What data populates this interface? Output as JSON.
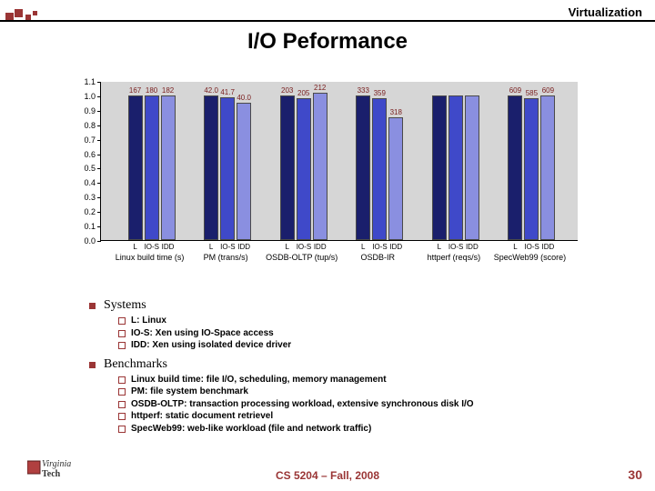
{
  "header": {
    "right": "Virtualization"
  },
  "title": "I/O Peformance",
  "chart": {
    "type": "bar",
    "background_color": "#d6d6d6",
    "ylim": [
      0,
      1.1
    ],
    "yticks": [
      0,
      0.1,
      0.2,
      0.3,
      0.4,
      0.5,
      0.6,
      0.7,
      0.8,
      0.9,
      1.0,
      1.1
    ],
    "bar_xlabels": [
      "L",
      "IO-S",
      "IDD"
    ],
    "bar_colors": [
      "#1a1f6c",
      "#3f49c9",
      "#8a8fe0"
    ],
    "label_color": "#7a2020",
    "axis_color": "#000000",
    "groups": [
      {
        "name": "Linux build time (s)",
        "values": [
          1.0,
          1.0,
          1.0
        ],
        "labels": [
          "167",
          "180",
          "182"
        ]
      },
      {
        "name": "PM (trans/s)",
        "values": [
          1.0,
          0.99,
          0.95
        ],
        "labels": [
          "42.0",
          "41.7",
          "40.0"
        ]
      },
      {
        "name": "OSDB-OLTP (tup/s)",
        "values": [
          1.0,
          0.98,
          1.02
        ],
        "labels": [
          "203",
          "205",
          "212"
        ]
      },
      {
        "name": "OSDB-IR",
        "values": [
          1.0,
          0.98,
          0.85
        ],
        "labels": [
          "333",
          "359",
          "318"
        ]
      },
      {
        "name": "httperf (reqs/s)",
        "values": [
          1.0,
          1.0,
          1.0
        ],
        "labels": [
          "",
          "",
          ""
        ]
      },
      {
        "name": "SpecWeb99 (score)",
        "values": [
          1.0,
          0.98,
          1.0
        ],
        "labels": [
          "609",
          "585",
          "609"
        ]
      }
    ]
  },
  "sections": [
    {
      "heading": "Systems",
      "items": [
        "L: Linux",
        "IO-S: Xen using IO-Space access",
        "IDD: Xen using isolated device driver"
      ]
    },
    {
      "heading": "Benchmarks",
      "items": [
        "Linux build time: file I/O, scheduling, memory management",
        "PM: file system benchmark",
        "OSDB-OLTP: transaction processing workload, extensive synchronous disk I/O",
        "httperf: static document retrievel",
        "SpecWeb99: web-like workload (file and network traffic)"
      ]
    }
  ],
  "footer": {
    "center": "CS 5204 – Fall, 2008",
    "page": "30"
  },
  "logo": {
    "top": "Virginia",
    "bottom": "Tech",
    "square_color": "#b04040"
  },
  "deco_color": "#9a3535"
}
